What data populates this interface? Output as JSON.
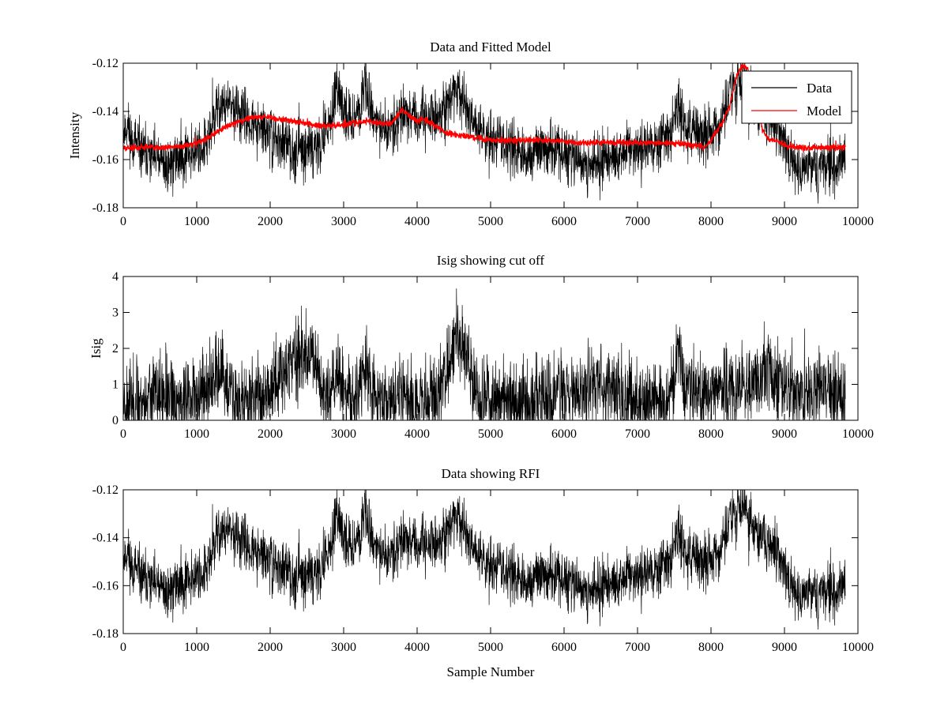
{
  "figure": {
    "background": "#ffffff"
  },
  "chart_data": [
    {
      "type": "line",
      "title": "Data and Fitted Model",
      "xlabel": "",
      "ylabel": "Intensity",
      "xlim": [
        0,
        10000
      ],
      "ylim": [
        -0.18,
        -0.12
      ],
      "xticks": [
        0,
        1000,
        2000,
        3000,
        4000,
        5000,
        6000,
        7000,
        8000,
        9000,
        10000
      ],
      "xtick_labels": [
        "0",
        "1000",
        "2000",
        "3000",
        "4000",
        "5000",
        "6000",
        "7000",
        "8000",
        "9000",
        "10000"
      ],
      "yticks": [
        -0.18,
        -0.16,
        -0.14,
        -0.12
      ],
      "ytick_labels": [
        "-0.18",
        "-0.16",
        "-0.14",
        "-0.12"
      ],
      "grid": false,
      "legend": {
        "position": "top-right",
        "entries": [
          "Data",
          "Model"
        ]
      },
      "series": [
        {
          "name": "Data",
          "color": "#000000",
          "noise": 0.0055,
          "seed": 11,
          "x": [
            0,
            60,
            120,
            250,
            400,
            600,
            800,
            1000,
            1150,
            1220,
            1300,
            1400,
            1500,
            1600,
            1700,
            1800,
            1900,
            2000,
            2200,
            2400,
            2600,
            2700,
            2800,
            2900,
            3000,
            3100,
            3200,
            3300,
            3400,
            3500,
            3600,
            3700,
            3800,
            3900,
            4000,
            4100,
            4200,
            4300,
            4400,
            4500,
            4600,
            4700,
            4800,
            4900,
            5000,
            5200,
            5400,
            5500,
            5600,
            5800,
            6000,
            6200,
            6400,
            6600,
            6800,
            7000,
            7200,
            7400,
            7500,
            7560,
            7620,
            7700,
            7800,
            7900,
            8000,
            8100,
            8200,
            8300,
            8400,
            8450,
            8500,
            8600,
            8700,
            8800,
            8900,
            9000,
            9100,
            9200,
            9400,
            9600,
            9700,
            9830
          ],
          "values": [
            -0.149,
            -0.146,
            -0.152,
            -0.157,
            -0.159,
            -0.163,
            -0.158,
            -0.156,
            -0.153,
            -0.145,
            -0.138,
            -0.137,
            -0.139,
            -0.141,
            -0.144,
            -0.146,
            -0.148,
            -0.15,
            -0.154,
            -0.156,
            -0.155,
            -0.152,
            -0.146,
            -0.133,
            -0.139,
            -0.143,
            -0.14,
            -0.129,
            -0.14,
            -0.148,
            -0.148,
            -0.144,
            -0.139,
            -0.142,
            -0.145,
            -0.143,
            -0.142,
            -0.141,
            -0.139,
            -0.132,
            -0.133,
            -0.141,
            -0.145,
            -0.148,
            -0.152,
            -0.153,
            -0.157,
            -0.159,
            -0.156,
            -0.156,
            -0.158,
            -0.16,
            -0.162,
            -0.16,
            -0.158,
            -0.156,
            -0.154,
            -0.151,
            -0.144,
            -0.136,
            -0.145,
            -0.148,
            -0.148,
            -0.15,
            -0.149,
            -0.146,
            -0.139,
            -0.131,
            -0.129,
            -0.128,
            -0.131,
            -0.137,
            -0.141,
            -0.143,
            -0.146,
            -0.155,
            -0.159,
            -0.162,
            -0.164,
            -0.163,
            -0.162,
            -0.158
          ]
        },
        {
          "name": "Model",
          "color": "#ff0000",
          "noise": 0.0006,
          "seed": 5,
          "x": [
            0,
            300,
            600,
            900,
            1100,
            1300,
            1500,
            1700,
            1900,
            2100,
            2300,
            2500,
            2700,
            2900,
            3100,
            3300,
            3500,
            3650,
            3700,
            3800,
            3900,
            4000,
            4100,
            4200,
            4300,
            4400,
            4600,
            4800,
            5000,
            5400,
            5800,
            6200,
            6600,
            7000,
            7400,
            7800,
            7900,
            7980,
            8050,
            8150,
            8250,
            8350,
            8420,
            8500,
            8600,
            8700,
            8800,
            8900,
            9000,
            9200,
            9400,
            9600,
            9830
          ],
          "values": [
            -0.155,
            -0.155,
            -0.155,
            -0.154,
            -0.152,
            -0.148,
            -0.145,
            -0.143,
            -0.142,
            -0.143,
            -0.144,
            -0.145,
            -0.146,
            -0.146,
            -0.145,
            -0.144,
            -0.145,
            -0.145,
            -0.143,
            -0.139,
            -0.142,
            -0.144,
            -0.143,
            -0.145,
            -0.147,
            -0.149,
            -0.15,
            -0.151,
            -0.152,
            -0.152,
            -0.152,
            -0.153,
            -0.153,
            -0.153,
            -0.153,
            -0.154,
            -0.155,
            -0.153,
            -0.149,
            -0.145,
            -0.138,
            -0.125,
            -0.121,
            -0.122,
            -0.134,
            -0.148,
            -0.152,
            -0.152,
            -0.154,
            -0.155,
            -0.155,
            -0.155,
            -0.155
          ]
        }
      ]
    },
    {
      "type": "line",
      "title": "Isig showing cut off",
      "xlabel": "",
      "ylabel": "Isig",
      "xlim": [
        0,
        10000
      ],
      "ylim": [
        0,
        4
      ],
      "xticks": [
        0,
        1000,
        2000,
        3000,
        4000,
        5000,
        6000,
        7000,
        8000,
        9000,
        10000
      ],
      "xtick_labels": [
        "0",
        "1000",
        "2000",
        "3000",
        "4000",
        "5000",
        "6000",
        "7000",
        "8000",
        "9000",
        "10000"
      ],
      "yticks": [
        0,
        1,
        2,
        3,
        4
      ],
      "ytick_labels": [
        "0",
        "1",
        "2",
        "3",
        "4"
      ],
      "grid": false,
      "series": [
        {
          "name": "Isig",
          "color": "#000000",
          "noise": 0.55,
          "seed": 23,
          "x": [
            0,
            200,
            400,
            600,
            800,
            1000,
            1200,
            1280,
            1400,
            1600,
            1800,
            2000,
            2200,
            2400,
            2600,
            2700,
            2800,
            2900,
            3000,
            3100,
            3200,
            3300,
            3400,
            3600,
            3800,
            4000,
            4200,
            4350,
            4450,
            4550,
            4650,
            4750,
            4850,
            5000,
            5200,
            5400,
            5600,
            5800,
            6000,
            6200,
            6400,
            6600,
            6800,
            7000,
            7200,
            7400,
            7500,
            7560,
            7620,
            7700,
            7900,
            8100,
            8300,
            8500,
            8700,
            8800,
            8900,
            9100,
            9300,
            9500,
            9700,
            9830
          ],
          "values": [
            0.6,
            0.5,
            0.7,
            0.6,
            0.5,
            0.7,
            0.9,
            1.4,
            0.9,
            0.5,
            0.6,
            0.9,
            1.5,
            1.8,
            1.6,
            1.0,
            0.6,
            1.5,
            0.8,
            0.5,
            0.8,
            1.6,
            0.7,
            0.6,
            0.7,
            0.5,
            0.6,
            0.9,
            1.8,
            2.5,
            2.0,
            1.2,
            0.5,
            0.6,
            0.7,
            0.5,
            0.6,
            0.7,
            0.6,
            0.8,
            1.1,
            0.9,
            0.7,
            0.5,
            0.6,
            0.6,
            1.0,
            2.2,
            1.1,
            0.8,
            0.7,
            0.8,
            0.9,
            0.8,
            1.3,
            1.5,
            1.0,
            0.8,
            0.7,
            0.8,
            0.8,
            0.7
          ]
        }
      ]
    },
    {
      "type": "line",
      "title": "Data showing RFI",
      "xlabel": "Sample Number",
      "ylabel": "",
      "xlim": [
        0,
        10000
      ],
      "ylim": [
        -0.18,
        -0.12
      ],
      "xticks": [
        0,
        1000,
        2000,
        3000,
        4000,
        5000,
        6000,
        7000,
        8000,
        9000,
        10000
      ],
      "xtick_labels": [
        "0",
        "1000",
        "2000",
        "3000",
        "4000",
        "5000",
        "6000",
        "7000",
        "8000",
        "9000",
        "10000"
      ],
      "yticks": [
        -0.18,
        -0.16,
        -0.14,
        -0.12
      ],
      "ytick_labels": [
        "-0.18",
        "-0.16",
        "-0.14",
        "-0.12"
      ],
      "grid": false,
      "series": [
        {
          "name": "Data",
          "color": "#000000",
          "noise": 0.0055,
          "seed": 11,
          "x": [
            0,
            60,
            120,
            250,
            400,
            600,
            800,
            1000,
            1150,
            1220,
            1300,
            1400,
            1500,
            1600,
            1700,
            1800,
            1900,
            2000,
            2200,
            2400,
            2600,
            2700,
            2800,
            2900,
            3000,
            3100,
            3200,
            3300,
            3400,
            3500,
            3600,
            3700,
            3800,
            3900,
            4000,
            4100,
            4200,
            4300,
            4400,
            4500,
            4600,
            4700,
            4800,
            4900,
            5000,
            5200,
            5400,
            5500,
            5600,
            5800,
            6000,
            6200,
            6400,
            6600,
            6800,
            7000,
            7200,
            7400,
            7500,
            7560,
            7620,
            7700,
            7800,
            7900,
            8000,
            8100,
            8200,
            8300,
            8400,
            8450,
            8500,
            8600,
            8700,
            8800,
            8900,
            9000,
            9100,
            9200,
            9400,
            9600,
            9700,
            9830
          ],
          "values": [
            -0.149,
            -0.146,
            -0.152,
            -0.157,
            -0.159,
            -0.163,
            -0.158,
            -0.156,
            -0.153,
            -0.145,
            -0.138,
            -0.137,
            -0.139,
            -0.141,
            -0.144,
            -0.146,
            -0.148,
            -0.15,
            -0.154,
            -0.156,
            -0.155,
            -0.152,
            -0.146,
            -0.133,
            -0.139,
            -0.143,
            -0.14,
            -0.129,
            -0.14,
            -0.148,
            -0.148,
            -0.144,
            -0.139,
            -0.142,
            -0.145,
            -0.143,
            -0.142,
            -0.141,
            -0.139,
            -0.132,
            -0.133,
            -0.141,
            -0.145,
            -0.148,
            -0.152,
            -0.153,
            -0.157,
            -0.159,
            -0.156,
            -0.156,
            -0.158,
            -0.16,
            -0.162,
            -0.16,
            -0.158,
            -0.156,
            -0.154,
            -0.151,
            -0.144,
            -0.136,
            -0.145,
            -0.148,
            -0.148,
            -0.15,
            -0.149,
            -0.146,
            -0.139,
            -0.131,
            -0.129,
            -0.128,
            -0.131,
            -0.137,
            -0.141,
            -0.143,
            -0.146,
            -0.155,
            -0.159,
            -0.162,
            -0.164,
            -0.163,
            -0.162,
            -0.158
          ]
        }
      ]
    }
  ]
}
